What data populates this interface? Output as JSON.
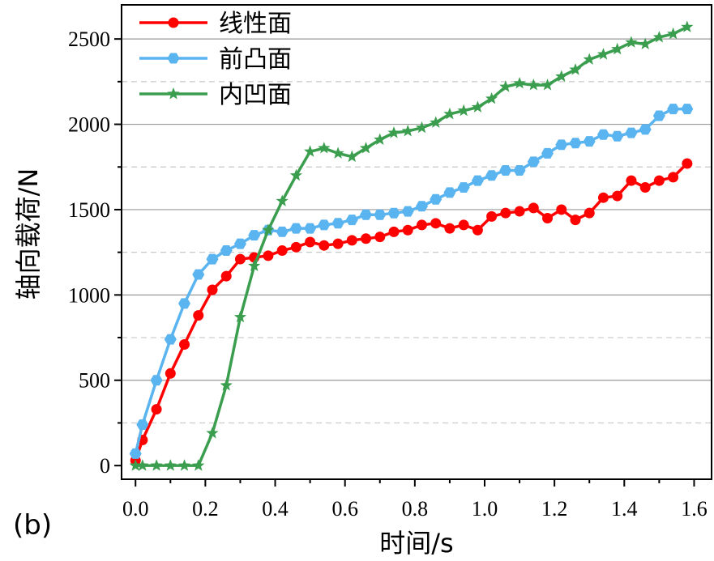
{
  "panel_label": "(b)",
  "chart_data": {
    "type": "line",
    "title": "",
    "xlabel": "时间/s",
    "ylabel": "轴向载荷/N",
    "xlim": [
      -0.04,
      1.65
    ],
    "ylim": [
      -80,
      2700
    ],
    "xticks": [
      0.0,
      0.2,
      0.4,
      0.6,
      0.8,
      1.0,
      1.2,
      1.4,
      1.6
    ],
    "xtick_labels": [
      "0.0",
      "0.2",
      "0.4",
      "0.6",
      "0.8",
      "1.0",
      "1.2",
      "1.4",
      "1.6"
    ],
    "yticks": [
      0,
      500,
      1000,
      1500,
      2000,
      2500
    ],
    "ytick_labels": [
      "0",
      "500",
      "1000",
      "1500",
      "2000",
      "2500"
    ],
    "major_grid": [
      500,
      1000,
      1500,
      2000,
      2500
    ],
    "minor_grid": [
      250,
      750,
      1250,
      1750,
      2250
    ],
    "legend_position": "top-left",
    "series": [
      {
        "name": "线性面",
        "color": "#ff0000",
        "marker": "circle",
        "x": [
          0.0,
          0.02,
          0.06,
          0.1,
          0.14,
          0.18,
          0.22,
          0.26,
          0.3,
          0.34,
          0.38,
          0.42,
          0.46,
          0.5,
          0.54,
          0.58,
          0.62,
          0.66,
          0.7,
          0.74,
          0.78,
          0.82,
          0.86,
          0.9,
          0.94,
          0.98,
          1.02,
          1.06,
          1.1,
          1.14,
          1.18,
          1.22,
          1.26,
          1.3,
          1.34,
          1.38,
          1.42,
          1.46,
          1.5,
          1.54,
          1.58
        ],
        "values": [
          30,
          150,
          330,
          540,
          710,
          880,
          1030,
          1110,
          1210,
          1220,
          1230,
          1260,
          1280,
          1310,
          1290,
          1300,
          1320,
          1330,
          1340,
          1370,
          1380,
          1410,
          1420,
          1390,
          1410,
          1380,
          1460,
          1480,
          1490,
          1510,
          1450,
          1500,
          1440,
          1480,
          1570,
          1580,
          1670,
          1630,
          1670,
          1690,
          1770
        ]
      },
      {
        "name": "前凸面",
        "color": "#5ab4ef",
        "marker": "hexagon",
        "x": [
          0.0,
          0.02,
          0.06,
          0.1,
          0.14,
          0.18,
          0.22,
          0.26,
          0.3,
          0.34,
          0.38,
          0.42,
          0.46,
          0.5,
          0.54,
          0.58,
          0.62,
          0.66,
          0.7,
          0.74,
          0.78,
          0.82,
          0.86,
          0.9,
          0.94,
          0.98,
          1.02,
          1.06,
          1.1,
          1.14,
          1.18,
          1.22,
          1.26,
          1.3,
          1.34,
          1.38,
          1.42,
          1.46,
          1.5,
          1.54,
          1.58
        ],
        "values": [
          70,
          240,
          500,
          740,
          950,
          1120,
          1210,
          1260,
          1300,
          1350,
          1380,
          1370,
          1390,
          1390,
          1410,
          1420,
          1440,
          1470,
          1470,
          1480,
          1490,
          1520,
          1560,
          1600,
          1630,
          1670,
          1700,
          1730,
          1730,
          1780,
          1830,
          1880,
          1890,
          1900,
          1940,
          1930,
          1950,
          1970,
          2050,
          2090,
          2090
        ]
      },
      {
        "name": "内凹面",
        "color": "#3a9e4e",
        "marker": "star",
        "x": [
          0.0,
          0.02,
          0.06,
          0.1,
          0.14,
          0.18,
          0.22,
          0.26,
          0.3,
          0.34,
          0.38,
          0.42,
          0.46,
          0.5,
          0.54,
          0.58,
          0.62,
          0.66,
          0.7,
          0.74,
          0.78,
          0.82,
          0.86,
          0.9,
          0.94,
          0.98,
          1.02,
          1.06,
          1.1,
          1.14,
          1.18,
          1.22,
          1.26,
          1.3,
          1.34,
          1.38,
          1.42,
          1.46,
          1.5,
          1.54,
          1.58
        ],
        "values": [
          0,
          0,
          0,
          0,
          0,
          0,
          190,
          470,
          870,
          1170,
          1380,
          1550,
          1700,
          1840,
          1860,
          1830,
          1810,
          1860,
          1910,
          1950,
          1960,
          1980,
          2010,
          2060,
          2080,
          2100,
          2150,
          2220,
          2240,
          2230,
          2230,
          2280,
          2320,
          2380,
          2410,
          2440,
          2480,
          2470,
          2510,
          2530,
          2570
        ]
      }
    ]
  }
}
